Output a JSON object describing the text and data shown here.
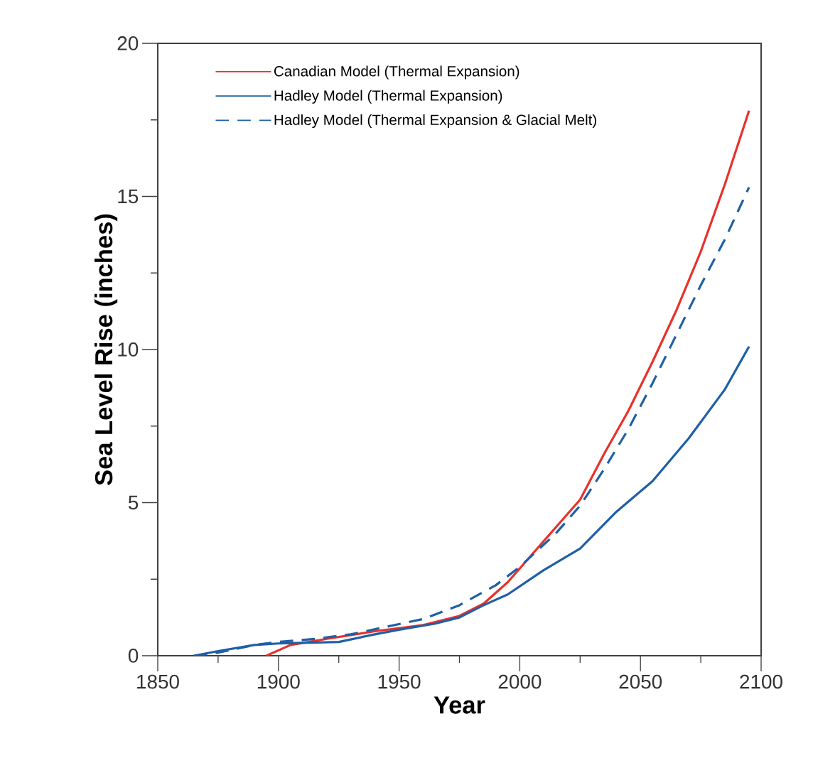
{
  "chart_data": {
    "type": "line",
    "xlabel": "Year",
    "ylabel": "Sea Level Rise (inches)",
    "xlim": [
      1850,
      2100
    ],
    "xticks": [
      1850,
      1900,
      1950,
      2000,
      2050,
      2100
    ],
    "ylim": [
      0,
      20
    ],
    "yticks": [
      0,
      5,
      10,
      15,
      20
    ],
    "legend": "top left",
    "grid": false,
    "series": [
      {
        "name": "Canadian Model (Thermal Expansion)",
        "color": "#e8312a",
        "line_style": "solid",
        "x": [
          1895,
          1905,
          1920,
          1940,
          1960,
          1975,
          1985,
          1995,
          2005,
          2015,
          2025,
          2035,
          2045,
          2055,
          2065,
          2075,
          2085,
          2095
        ],
        "values": [
          0,
          0.35,
          0.55,
          0.8,
          1.0,
          1.3,
          1.7,
          2.4,
          3.3,
          4.2,
          5.1,
          6.6,
          8.0,
          9.6,
          11.3,
          13.2,
          15.4,
          17.8
        ]
      },
      {
        "name": "Hadley Model (Thermal Expansion)",
        "color": "#1f5fa6",
        "line_style": "solid",
        "x": [
          1865,
          1875,
          1890,
          1900,
          1910,
          1925,
          1940,
          1950,
          1965,
          1975,
          1985,
          1995,
          2010,
          2025,
          2040,
          2055,
          2070,
          2085,
          2095
        ],
        "values": [
          0,
          0.15,
          0.35,
          0.4,
          0.42,
          0.45,
          0.7,
          0.85,
          1.05,
          1.25,
          1.65,
          2.0,
          2.8,
          3.5,
          4.7,
          5.7,
          7.1,
          8.7,
          10.1
        ]
      },
      {
        "name": "Hadley Model (Thermal Expansion & Glacial Melt)",
        "color": "#1f5fa6",
        "line_style": "dashed",
        "x": [
          1865,
          1875,
          1890,
          1900,
          1915,
          1930,
          1945,
          1960,
          1975,
          1990,
          2000,
          2015,
          2025,
          2035,
          2045,
          2055,
          2065,
          2075,
          2085,
          2095
        ],
        "values": [
          0,
          0.1,
          0.35,
          0.45,
          0.55,
          0.7,
          0.95,
          1.2,
          1.65,
          2.3,
          2.9,
          4.0,
          4.9,
          6.1,
          7.4,
          8.9,
          10.5,
          12.1,
          13.6,
          15.3
        ]
      }
    ]
  }
}
